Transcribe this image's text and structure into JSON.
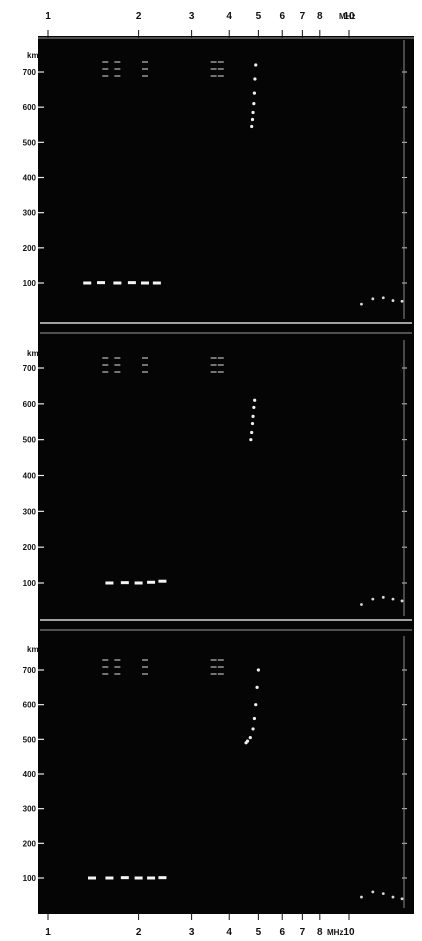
{
  "chart_data": {
    "type": "scatter",
    "x_scale": "log",
    "x_unit": "MHz",
    "y_unit": "km",
    "x_ticks_top": [
      "1",
      "2",
      "3",
      "4",
      "5",
      "6",
      "7",
      "8",
      "10"
    ],
    "x_ticks_bottom": [
      "1",
      "2",
      "3",
      "4",
      "5",
      "6",
      "7",
      "8",
      "10"
    ],
    "x_tick_values": [
      1,
      2,
      3,
      4,
      5,
      6,
      7,
      8,
      10
    ],
    "xlim": [
      1,
      15
    ],
    "panels": [
      {
        "y_ticks": [
          "700",
          "600",
          "500",
          "400",
          "300",
          "200",
          "100"
        ],
        "y_tick_values": [
          700,
          600,
          500,
          400,
          300,
          200,
          100
        ],
        "ylim": [
          0,
          750
        ],
        "echo_trace": [
          [
            4.75,
            545
          ],
          [
            4.78,
            565
          ],
          [
            4.8,
            585
          ],
          [
            4.83,
            610
          ],
          [
            4.85,
            640
          ],
          [
            4.87,
            680
          ],
          [
            4.9,
            720
          ]
        ],
        "low_echo": [
          [
            1.35,
            100
          ],
          [
            1.5,
            101
          ],
          [
            1.7,
            100
          ],
          [
            1.9,
            101
          ],
          [
            2.1,
            100
          ],
          [
            2.3,
            100
          ]
        ],
        "high_freq_trace": [
          [
            11,
            40
          ],
          [
            12,
            55
          ],
          [
            13,
            58
          ],
          [
            14,
            50
          ],
          [
            15,
            48
          ]
        ]
      },
      {
        "y_ticks": [
          "700",
          "600",
          "500",
          "400",
          "300",
          "200",
          "100"
        ],
        "y_tick_values": [
          700,
          600,
          500,
          400,
          300,
          200,
          100
        ],
        "ylim": [
          0,
          750
        ],
        "echo_trace": [
          [
            4.72,
            500
          ],
          [
            4.75,
            520
          ],
          [
            4.78,
            545
          ],
          [
            4.8,
            565
          ],
          [
            4.83,
            590
          ],
          [
            4.86,
            610
          ]
        ],
        "low_echo": [
          [
            1.6,
            100
          ],
          [
            1.8,
            101
          ],
          [
            2.0,
            100
          ],
          [
            2.2,
            102
          ],
          [
            2.4,
            105
          ]
        ],
        "high_freq_trace": [
          [
            11,
            40
          ],
          [
            12,
            55
          ],
          [
            13,
            60
          ],
          [
            14,
            55
          ],
          [
            15,
            50
          ]
        ]
      },
      {
        "y_ticks": [
          "700",
          "600",
          "500",
          "400",
          "300",
          "200",
          "100"
        ],
        "y_tick_values": [
          700,
          600,
          500,
          400,
          300,
          200,
          100
        ],
        "ylim": [
          0,
          750
        ],
        "echo_trace": [
          [
            4.55,
            490
          ],
          [
            4.6,
            495
          ],
          [
            4.7,
            505
          ],
          [
            4.8,
            530
          ],
          [
            4.85,
            560
          ],
          [
            4.9,
            600
          ],
          [
            4.95,
            650
          ],
          [
            5.0,
            700
          ]
        ],
        "low_echo": [
          [
            1.4,
            100
          ],
          [
            1.6,
            100
          ],
          [
            1.8,
            101
          ],
          [
            2.0,
            100
          ],
          [
            2.2,
            100
          ],
          [
            2.4,
            101
          ]
        ],
        "high_freq_trace": [
          [
            11,
            45
          ],
          [
            12,
            60
          ],
          [
            13,
            55
          ],
          [
            14,
            45
          ],
          [
            15,
            40
          ]
        ]
      }
    ]
  }
}
